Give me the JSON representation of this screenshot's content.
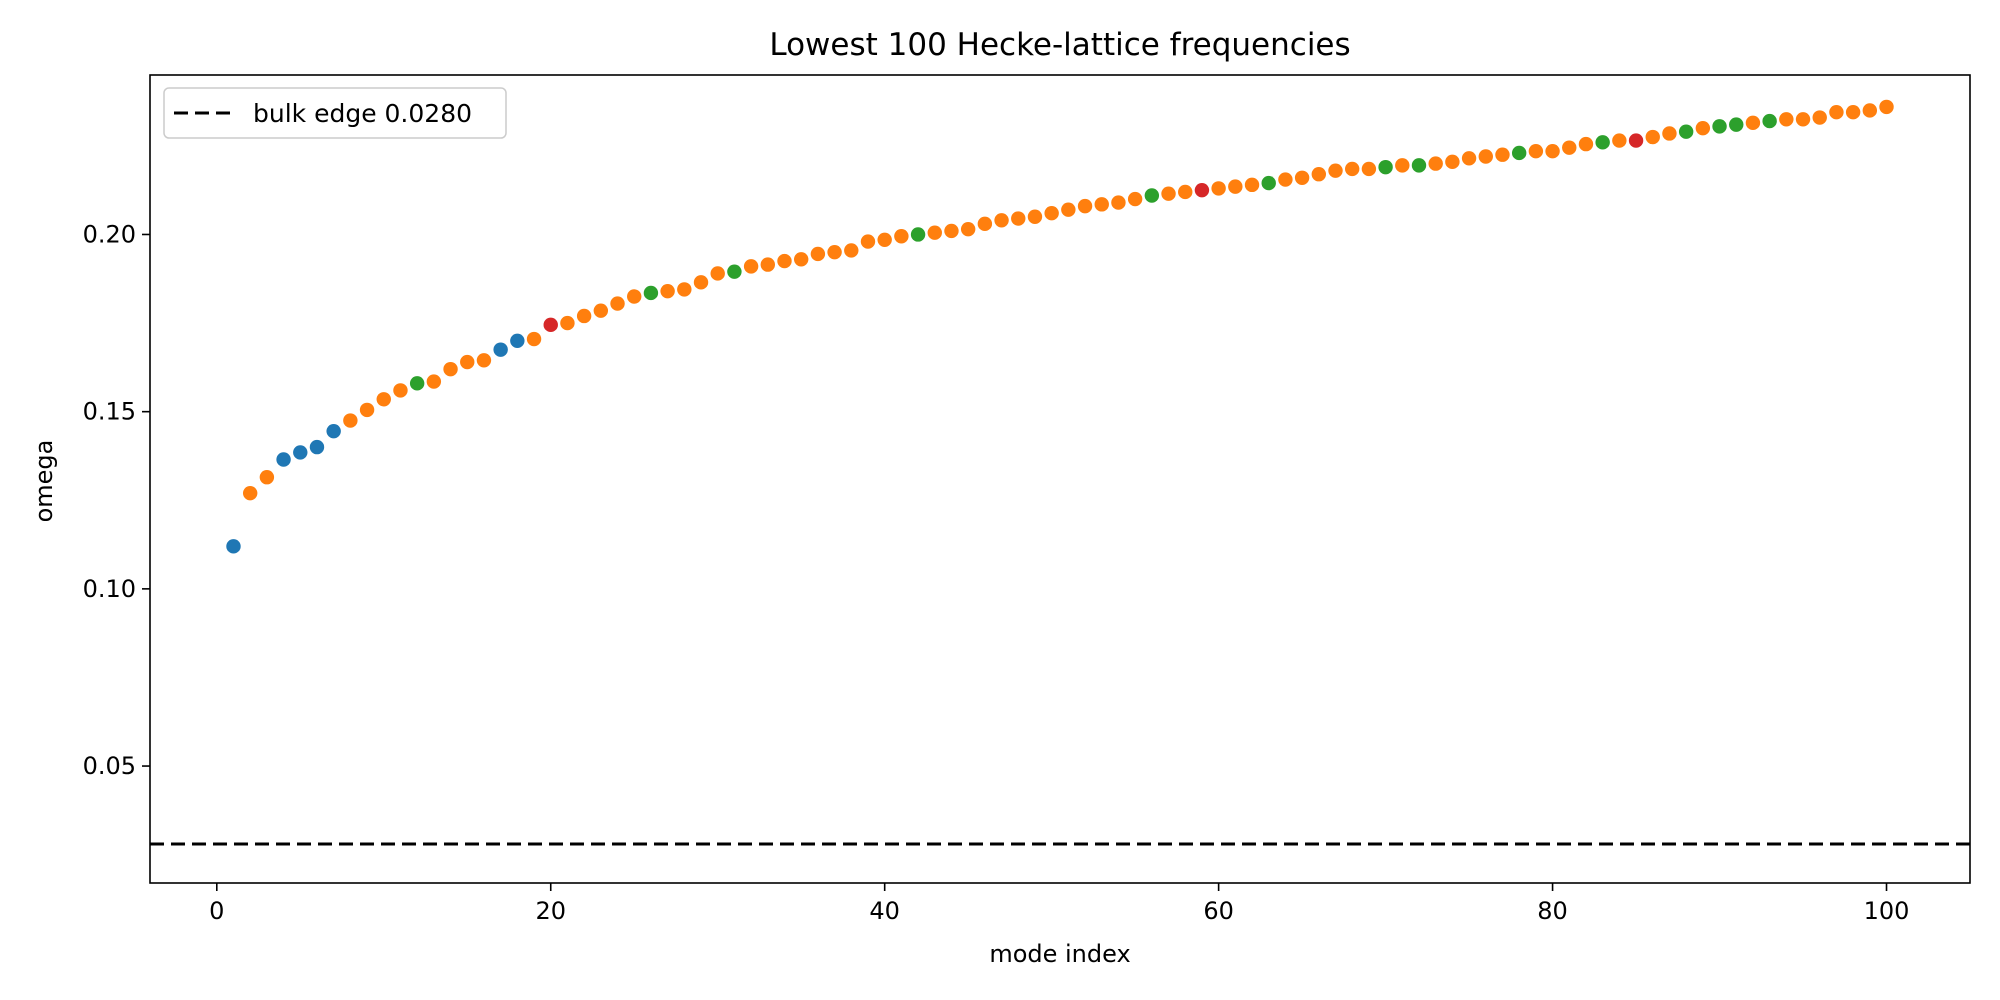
{
  "chart_data": {
    "type": "scatter",
    "title": "Lowest 100 Hecke-lattice frequencies",
    "xlabel": "mode index",
    "ylabel": "omega",
    "xlim": [
      -4,
      105
    ],
    "ylim": [
      0.017,
      0.245
    ],
    "xticks": [
      0,
      20,
      40,
      60,
      80,
      100
    ],
    "yticks": [
      0.05,
      0.1,
      0.15,
      0.2
    ],
    "ytick_labels": [
      "0.05",
      "0.10",
      "0.15",
      "0.20"
    ],
    "grid": false,
    "legend_position": "top-left",
    "reference_line": {
      "label": "bulk edge 0.0280",
      "y": 0.028,
      "style": "dashed",
      "color": "#000000"
    },
    "colors": {
      "blue": "#1f77b4",
      "orange": "#ff7f0e",
      "green": "#2ca02c",
      "red": "#d62728"
    },
    "points": [
      {
        "x": 1,
        "y": 0.112,
        "c": "blue"
      },
      {
        "x": 2,
        "y": 0.127,
        "c": "orange"
      },
      {
        "x": 3,
        "y": 0.1315,
        "c": "orange"
      },
      {
        "x": 4,
        "y": 0.1365,
        "c": "blue"
      },
      {
        "x": 5,
        "y": 0.1385,
        "c": "blue"
      },
      {
        "x": 6,
        "y": 0.14,
        "c": "blue"
      },
      {
        "x": 7,
        "y": 0.1445,
        "c": "blue"
      },
      {
        "x": 8,
        "y": 0.1475,
        "c": "orange"
      },
      {
        "x": 9,
        "y": 0.1505,
        "c": "orange"
      },
      {
        "x": 10,
        "y": 0.1535,
        "c": "orange"
      },
      {
        "x": 11,
        "y": 0.156,
        "c": "orange"
      },
      {
        "x": 12,
        "y": 0.158,
        "c": "green"
      },
      {
        "x": 13,
        "y": 0.1585,
        "c": "orange"
      },
      {
        "x": 14,
        "y": 0.162,
        "c": "orange"
      },
      {
        "x": 15,
        "y": 0.164,
        "c": "orange"
      },
      {
        "x": 16,
        "y": 0.1645,
        "c": "orange"
      },
      {
        "x": 17,
        "y": 0.1675,
        "c": "blue"
      },
      {
        "x": 18,
        "y": 0.17,
        "c": "blue"
      },
      {
        "x": 19,
        "y": 0.1705,
        "c": "orange"
      },
      {
        "x": 20,
        "y": 0.1745,
        "c": "red"
      },
      {
        "x": 21,
        "y": 0.175,
        "c": "orange"
      },
      {
        "x": 22,
        "y": 0.177,
        "c": "orange"
      },
      {
        "x": 23,
        "y": 0.1785,
        "c": "orange"
      },
      {
        "x": 24,
        "y": 0.1805,
        "c": "orange"
      },
      {
        "x": 25,
        "y": 0.1825,
        "c": "orange"
      },
      {
        "x": 26,
        "y": 0.1835,
        "c": "green"
      },
      {
        "x": 27,
        "y": 0.184,
        "c": "orange"
      },
      {
        "x": 28,
        "y": 0.1845,
        "c": "orange"
      },
      {
        "x": 29,
        "y": 0.1865,
        "c": "orange"
      },
      {
        "x": 30,
        "y": 0.189,
        "c": "orange"
      },
      {
        "x": 31,
        "y": 0.1895,
        "c": "green"
      },
      {
        "x": 32,
        "y": 0.191,
        "c": "orange"
      },
      {
        "x": 33,
        "y": 0.1915,
        "c": "orange"
      },
      {
        "x": 34,
        "y": 0.1925,
        "c": "orange"
      },
      {
        "x": 35,
        "y": 0.193,
        "c": "orange"
      },
      {
        "x": 36,
        "y": 0.1945,
        "c": "orange"
      },
      {
        "x": 37,
        "y": 0.195,
        "c": "orange"
      },
      {
        "x": 38,
        "y": 0.1955,
        "c": "orange"
      },
      {
        "x": 39,
        "y": 0.198,
        "c": "orange"
      },
      {
        "x": 40,
        "y": 0.1985,
        "c": "orange"
      },
      {
        "x": 41,
        "y": 0.1995,
        "c": "orange"
      },
      {
        "x": 42,
        "y": 0.2,
        "c": "green"
      },
      {
        "x": 43,
        "y": 0.2005,
        "c": "orange"
      },
      {
        "x": 44,
        "y": 0.201,
        "c": "orange"
      },
      {
        "x": 45,
        "y": 0.2015,
        "c": "orange"
      },
      {
        "x": 46,
        "y": 0.203,
        "c": "orange"
      },
      {
        "x": 47,
        "y": 0.204,
        "c": "orange"
      },
      {
        "x": 48,
        "y": 0.2045,
        "c": "orange"
      },
      {
        "x": 49,
        "y": 0.205,
        "c": "orange"
      },
      {
        "x": 50,
        "y": 0.206,
        "c": "orange"
      },
      {
        "x": 51,
        "y": 0.207,
        "c": "orange"
      },
      {
        "x": 52,
        "y": 0.208,
        "c": "orange"
      },
      {
        "x": 53,
        "y": 0.2085,
        "c": "orange"
      },
      {
        "x": 54,
        "y": 0.209,
        "c": "orange"
      },
      {
        "x": 55,
        "y": 0.21,
        "c": "orange"
      },
      {
        "x": 56,
        "y": 0.211,
        "c": "green"
      },
      {
        "x": 57,
        "y": 0.2115,
        "c": "orange"
      },
      {
        "x": 58,
        "y": 0.212,
        "c": "orange"
      },
      {
        "x": 59,
        "y": 0.2125,
        "c": "red"
      },
      {
        "x": 60,
        "y": 0.213,
        "c": "orange"
      },
      {
        "x": 61,
        "y": 0.2135,
        "c": "orange"
      },
      {
        "x": 62,
        "y": 0.214,
        "c": "orange"
      },
      {
        "x": 63,
        "y": 0.2145,
        "c": "green"
      },
      {
        "x": 64,
        "y": 0.2155,
        "c": "orange"
      },
      {
        "x": 65,
        "y": 0.216,
        "c": "orange"
      },
      {
        "x": 66,
        "y": 0.217,
        "c": "orange"
      },
      {
        "x": 67,
        "y": 0.218,
        "c": "orange"
      },
      {
        "x": 68,
        "y": 0.2185,
        "c": "orange"
      },
      {
        "x": 69,
        "y": 0.2185,
        "c": "orange"
      },
      {
        "x": 70,
        "y": 0.219,
        "c": "green"
      },
      {
        "x": 71,
        "y": 0.2195,
        "c": "orange"
      },
      {
        "x": 72,
        "y": 0.2195,
        "c": "green"
      },
      {
        "x": 73,
        "y": 0.22,
        "c": "orange"
      },
      {
        "x": 74,
        "y": 0.2205,
        "c": "orange"
      },
      {
        "x": 75,
        "y": 0.2215,
        "c": "orange"
      },
      {
        "x": 76,
        "y": 0.222,
        "c": "orange"
      },
      {
        "x": 77,
        "y": 0.2225,
        "c": "orange"
      },
      {
        "x": 78,
        "y": 0.223,
        "c": "green"
      },
      {
        "x": 79,
        "y": 0.2235,
        "c": "orange"
      },
      {
        "x": 80,
        "y": 0.2235,
        "c": "orange"
      },
      {
        "x": 81,
        "y": 0.2245,
        "c": "orange"
      },
      {
        "x": 82,
        "y": 0.2255,
        "c": "orange"
      },
      {
        "x": 83,
        "y": 0.226,
        "c": "green"
      },
      {
        "x": 84,
        "y": 0.2265,
        "c": "orange"
      },
      {
        "x": 85,
        "y": 0.2265,
        "c": "red"
      },
      {
        "x": 86,
        "y": 0.2275,
        "c": "orange"
      },
      {
        "x": 87,
        "y": 0.2285,
        "c": "orange"
      },
      {
        "x": 88,
        "y": 0.229,
        "c": "green"
      },
      {
        "x": 89,
        "y": 0.23,
        "c": "orange"
      },
      {
        "x": 90,
        "y": 0.2305,
        "c": "green"
      },
      {
        "x": 91,
        "y": 0.231,
        "c": "green"
      },
      {
        "x": 92,
        "y": 0.2315,
        "c": "orange"
      },
      {
        "x": 93,
        "y": 0.232,
        "c": "green"
      },
      {
        "x": 94,
        "y": 0.2325,
        "c": "orange"
      },
      {
        "x": 95,
        "y": 0.2325,
        "c": "orange"
      },
      {
        "x": 96,
        "y": 0.233,
        "c": "orange"
      },
      {
        "x": 97,
        "y": 0.2345,
        "c": "orange"
      },
      {
        "x": 98,
        "y": 0.2345,
        "c": "orange"
      },
      {
        "x": 99,
        "y": 0.235,
        "c": "orange"
      },
      {
        "x": 100,
        "y": 0.236,
        "c": "orange"
      }
    ]
  }
}
